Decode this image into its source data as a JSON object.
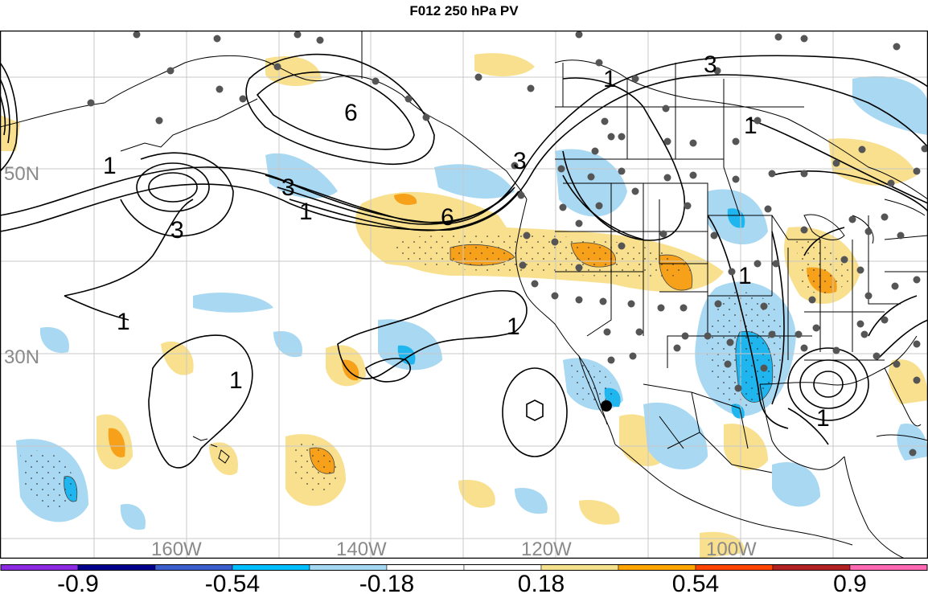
{
  "title": "F012 250 hPa PV",
  "latitude_labels": [
    "50N",
    "30N"
  ],
  "longitude_labels": [
    "160W",
    "140W",
    "120W",
    "100W"
  ],
  "contour_labels": [
    "1",
    "3",
    "1",
    "3",
    "1",
    "6",
    "3",
    "6",
    "1",
    "3",
    "1",
    "1",
    "1",
    "1",
    "1"
  ],
  "colorbar": {
    "tick_labels": [
      "-0.9",
      "-0.54",
      "-0.18",
      "0.18",
      "0.54",
      "0.9"
    ],
    "colors": [
      "#8a2be2",
      "#00008b",
      "#3a5fcd",
      "#00bfff",
      "#a4d8f0",
      "#ffffff",
      "#ffffff",
      "#f5e08c",
      "#ffa500",
      "#ff4500",
      "#b22222",
      "#ff69b4"
    ]
  },
  "colors": {
    "positive_light": "#f8e08e",
    "positive_mid": "#f7a11a",
    "negative_light": "#a8d8f2",
    "negative_mid": "#1fb5ef",
    "contour": "#000000",
    "gridline": "#bfbfbf",
    "station_dot": "#555555"
  }
}
